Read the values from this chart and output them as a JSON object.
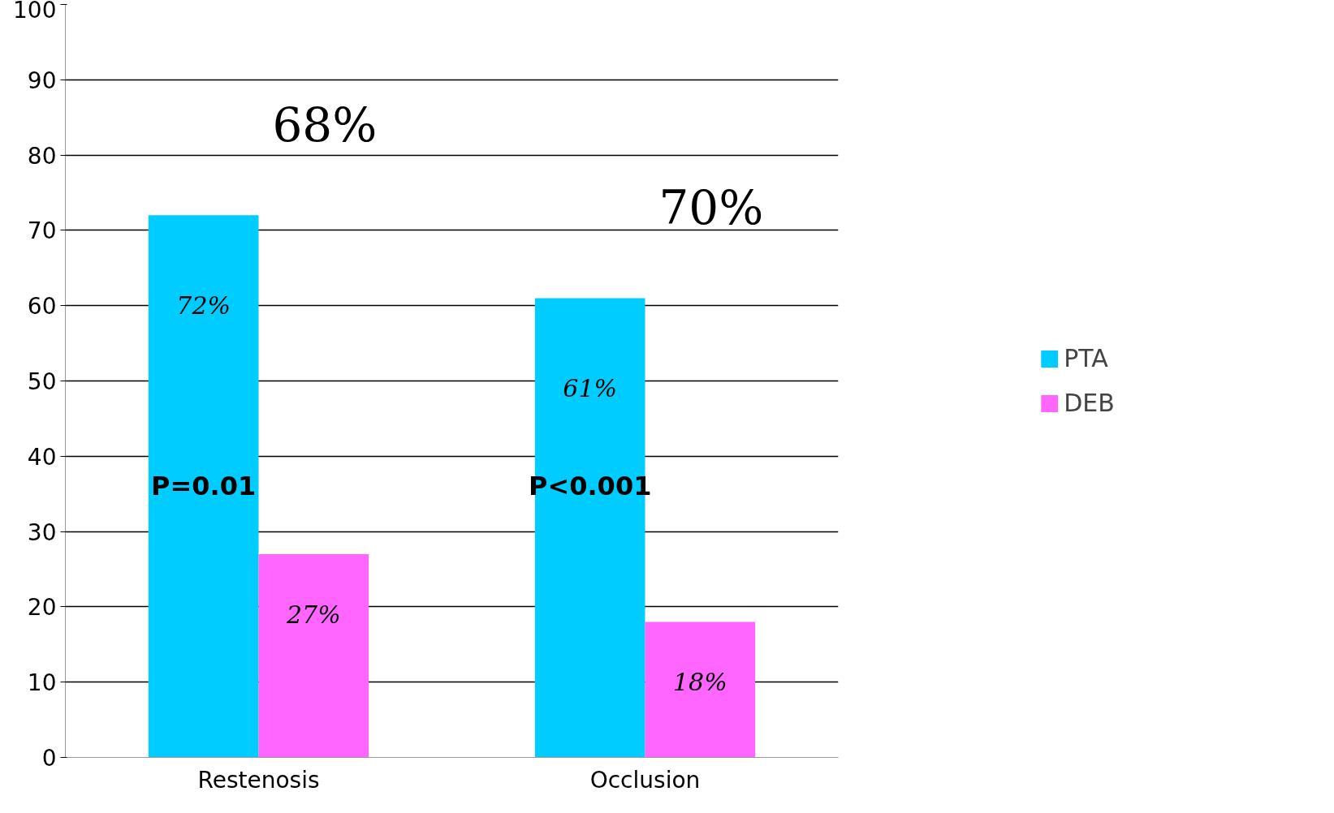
{
  "chart_data": {
    "type": "bar",
    "categories": [
      "Restenosis",
      "Occlusion"
    ],
    "series": [
      {
        "name": "PTA",
        "color": "#00ccff",
        "values": [
          72,
          61
        ],
        "value_labels": [
          "72%",
          "61%"
        ]
      },
      {
        "name": "DEB",
        "color": "#ff66ff",
        "values": [
          27,
          18
        ],
        "value_labels": [
          "27%",
          "18%"
        ]
      }
    ],
    "ylim": [
      0,
      100
    ],
    "yticks": [
      0,
      10,
      20,
      30,
      40,
      50,
      60,
      70,
      80,
      90,
      100
    ],
    "grid": "y",
    "legend": "right",
    "annotations": [
      "68%",
      "P=0.01",
      "70%",
      "P<0.001"
    ]
  }
}
